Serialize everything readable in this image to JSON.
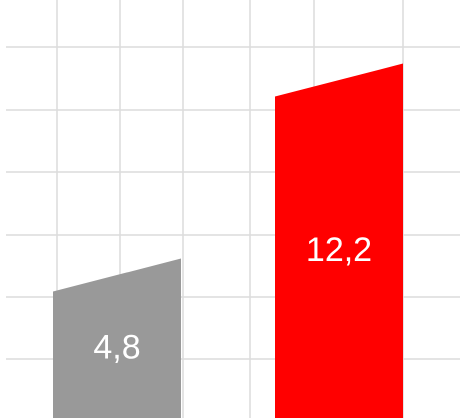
{
  "chart_data": {
    "type": "bar",
    "title": "",
    "xlabel": "",
    "ylabel": "",
    "categories": [
      "",
      ""
    ],
    "values": [
      4.8,
      12.2
    ],
    "value_labels": [
      "4,8",
      "12,2"
    ],
    "colors": [
      "#999999",
      "#ff0000"
    ],
    "ylim": [
      0,
      14
    ],
    "grid": true,
    "legend": "none"
  }
}
